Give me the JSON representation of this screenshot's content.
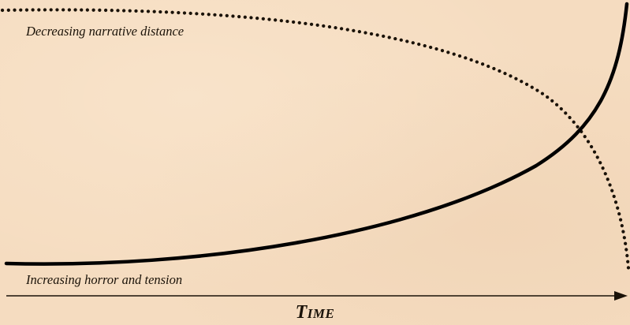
{
  "labels": {
    "distance": "Decreasing narrative distance",
    "horror": "Increasing horror and tension",
    "axis": "Time"
  },
  "colors": {
    "background": "#f5dcc0",
    "ink": "#1a1208"
  }
}
